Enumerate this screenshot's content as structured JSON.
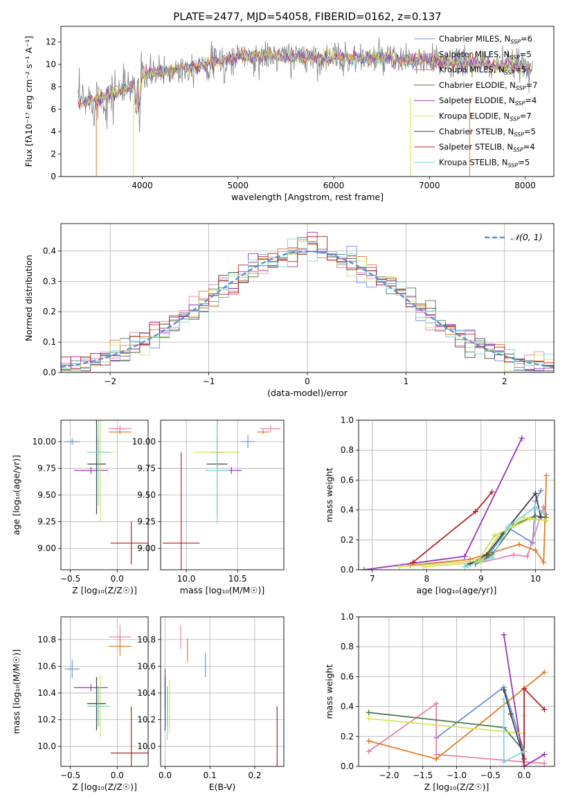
{
  "figure_title": "PLATE=2477, MJD=54058, FIBERID=0162, z=0.137",
  "colors": {
    "Chabrier MILES": "#6a8fd4",
    "Salpeter MILES": "#7fd0d6",
    "Kroupa MILES": "#e07b27",
    "Chabrier ELODIE": "#4c7a4c",
    "Salpeter ELODIE": "#9b32b5",
    "Kroupa ELODIE": "#d6e35a",
    "Chabrier STELIB": "#404040",
    "Salpeter STELIB": "#b22222",
    "Kroupa STELIB": "#7fd7dc",
    "Pink": "#e87fae",
    "Yellow-green": "#c7e05a",
    "Gauss": "#5b8fd6",
    "Observed": "#808080"
  },
  "chart_data": [
    {
      "id": "spectrum",
      "type": "line",
      "xlabel": "wavelength [Angstrom, rest frame]",
      "ylabel": "Flux [fλ10⁻¹⁷ erg cm⁻² s⁻¹ A⁻¹]",
      "xlim": [
        3150,
        8300
      ],
      "ylim": [
        0,
        13.4
      ],
      "xticks": [
        4000,
        5000,
        6000,
        7000,
        8000
      ],
      "yticks": [
        0,
        2,
        4,
        6,
        8,
        10,
        12
      ],
      "legend": [
        {
          "label": "Chabrier MILES, N",
          "sub": "SSP",
          "val": "=6",
          "color": "#6a8fd4"
        },
        {
          "label": "Salpeter MILES, N",
          "sub": "SSP",
          "val": "=5",
          "color": "#e87fae"
        },
        {
          "label": "Kroupa MILES, N",
          "sub": "SSP",
          "val": "=5",
          "color": "#e07b27"
        },
        {
          "label": "Chabrier ELODIE, N",
          "sub": "SSP",
          "val": "=7",
          "color": "#4c7a4c"
        },
        {
          "label": "Salpeter ELODIE, N",
          "sub": "SSP",
          "val": "=4",
          "color": "#9b32b5"
        },
        {
          "label": "Kroupa ELODIE, N",
          "sub": "SSP",
          "val": "=7",
          "color": "#d6e35a"
        },
        {
          "label": "Chabrier STELIB, N",
          "sub": "SSP",
          "val": "=5",
          "color": "#404040"
        },
        {
          "label": "Salpeter STELIB, N",
          "sub": "SSP",
          "val": "=4",
          "color": "#b22222"
        },
        {
          "label": "Kroupa STELIB, N",
          "sub": "SSP",
          "val": "=5",
          "color": "#7fd7dc"
        }
      ]
    },
    {
      "id": "residuals",
      "type": "line",
      "xlabel": "(data-model)/error",
      "ylabel": "Normed distribution",
      "xlim": [
        -2.5,
        2.5
      ],
      "ylim": [
        0,
        0.49
      ],
      "xticks": [
        -2,
        -1,
        0,
        1,
        2
      ],
      "yticks": [
        0.0,
        0.1,
        0.2,
        0.3,
        0.4
      ],
      "legend": "𝒩(0, 1)"
    },
    {
      "id": "age_vs_Z",
      "type": "scatter",
      "xlabel": "Z [log₁₀(Z/Z☉)]",
      "ylabel": "age  [log₁₀(age/yr)]",
      "xlim": [
        -0.6,
        0.33
      ],
      "ylim": [
        8.8,
        10.2
      ],
      "xticks": [
        -0.5,
        0.0
      ],
      "yticks": [
        9.0,
        9.25,
        9.5,
        9.75,
        10.0
      ],
      "points": [
        {
          "x": -0.48,
          "y": 10.0,
          "xerr": 0.08,
          "yerr": 0.03,
          "color": "#6a8fd4"
        },
        {
          "x": 0.03,
          "y": 10.12,
          "xerr": 0.12,
          "yerr": 0.0,
          "color": "#e87fae"
        },
        {
          "x": 0.03,
          "y": 10.09,
          "xerr": 0.12,
          "yerr": 0.02,
          "color": "#e07b27"
        },
        {
          "x": -0.2,
          "y": 9.9,
          "xerr": 0.1,
          "yerr": 0.15,
          "color": "#4c7a4c"
        },
        {
          "x": -0.28,
          "y": 9.73,
          "xerr": 0.18,
          "yerr": 0.0,
          "color": "#9b32b5"
        },
        {
          "x": -0.18,
          "y": 9.9,
          "xerr": 0.15,
          "yerr": 0.65,
          "color": "#d6e35a"
        },
        {
          "x": -0.22,
          "y": 9.79,
          "xerr": 0.1,
          "yerr": 0.47,
          "color": "#404040"
        },
        {
          "x": 0.15,
          "y": 9.05,
          "xerr": 0.22,
          "yerr": 0.2,
          "color": "#b22222"
        },
        {
          "x": -0.2,
          "y": 9.9,
          "xerr": 0.12,
          "yerr": 0.5,
          "color": "#7fd7dc"
        }
      ]
    },
    {
      "id": "age_vs_mass",
      "type": "scatter",
      "xlabel": "mass [log₁₀(M/M☉)]",
      "ylabel": "",
      "xlim": [
        9.75,
        10.95
      ],
      "ylim": [
        8.8,
        10.2
      ],
      "xticks": [
        10.0,
        10.5
      ],
      "yticks": [
        9.0,
        9.25,
        9.5,
        9.75,
        10.0
      ],
      "points": [
        {
          "x": 10.6,
          "y": 10.0,
          "xerr": 0.07,
          "yerr": 0.06,
          "color": "#6a8fd4"
        },
        {
          "x": 10.82,
          "y": 10.12,
          "xerr": 0.1,
          "yerr": 0.0,
          "color": "#e87fae"
        },
        {
          "x": 10.75,
          "y": 10.09,
          "xerr": 0.06,
          "yerr": 0.02,
          "color": "#e07b27"
        },
        {
          "x": 10.3,
          "y": 9.9,
          "xerr": 0.07,
          "yerr": 0.15,
          "color": "#4c7a4c"
        },
        {
          "x": 10.44,
          "y": 9.73,
          "xerr": 0.1,
          "yerr": 0.0,
          "color": "#9b32b5"
        },
        {
          "x": 10.3,
          "y": 9.9,
          "xerr": 0.22,
          "yerr": 0.65,
          "color": "#d6e35a"
        },
        {
          "x": 10.3,
          "y": 9.79,
          "xerr": 0.1,
          "yerr": 0.47,
          "color": "#404040"
        },
        {
          "x": 9.95,
          "y": 9.05,
          "xerr": 0.18,
          "yerr": 0.85,
          "color": "#b22222"
        },
        {
          "x": 10.3,
          "y": 9.73,
          "xerr": 0.12,
          "yerr": 0.5,
          "color": "#7fd7dc"
        }
      ]
    },
    {
      "id": "mass_weight_vs_age",
      "type": "line",
      "xlabel": "age  [log₁₀(age/yr)]",
      "ylabel": "mass weight",
      "xlim": [
        6.75,
        10.35
      ],
      "ylim": [
        0.0,
        1.0
      ],
      "xticks": [
        7,
        8,
        9,
        10
      ],
      "yticks": [
        0.0,
        0.2,
        0.4,
        0.6,
        0.8,
        1.0
      ],
      "series": [
        {
          "color": "#6a8fd4",
          "x": [
            8.75,
            9.1,
            9.5,
            9.95,
            10.0,
            10.1
          ],
          "y": [
            0.03,
            0.08,
            0.28,
            0.18,
            0.46,
            0.53
          ]
        },
        {
          "color": "#e87fae",
          "x": [
            8.9,
            9.6,
            9.85,
            10.15,
            10.2
          ],
          "y": [
            0.04,
            0.1,
            0.09,
            0.42,
            0.37
          ]
        },
        {
          "color": "#e07b27",
          "x": [
            7.7,
            8.8,
            9.7,
            10.0,
            10.15,
            10.2
          ],
          "y": [
            0.03,
            0.07,
            0.17,
            0.13,
            0.05,
            0.63
          ]
        },
        {
          "color": "#4c7a4c",
          "x": [
            8.9,
            9.2,
            9.6,
            10.0,
            10.2
          ],
          "y": [
            0.04,
            0.1,
            0.3,
            0.36,
            0.35
          ]
        },
        {
          "color": "#9b32b5",
          "x": [
            6.85,
            8.7,
            9.75
          ],
          "y": [
            0.0,
            0.09,
            0.88
          ]
        },
        {
          "color": "#d6e35a",
          "x": [
            7.95,
            9.0,
            9.3,
            9.8,
            10.2
          ],
          "y": [
            0.02,
            0.05,
            0.22,
            0.35,
            0.33
          ]
        },
        {
          "color": "#404040",
          "x": [
            8.8,
            9.1,
            9.4,
            10.0,
            10.1
          ],
          "y": [
            0.04,
            0.1,
            0.24,
            0.51,
            0.35
          ]
        },
        {
          "color": "#b22222",
          "x": [
            7.75,
            8.9,
            9.2
          ],
          "y": [
            0.05,
            0.39,
            0.52
          ]
        },
        {
          "color": "#c7e05a",
          "x": [
            7.5,
            8.95,
            9.25,
            9.9,
            10.2
          ],
          "y": [
            0.02,
            0.06,
            0.23,
            0.34,
            0.33
          ]
        },
        {
          "color": "#7fd7dc",
          "x": [
            8.7,
            9.2,
            9.5,
            10.0,
            10.15
          ],
          "y": [
            0.02,
            0.08,
            0.29,
            0.42,
            0.38
          ]
        }
      ]
    },
    {
      "id": "mass_vs_Z",
      "type": "scatter",
      "xlabel": "Z [log₁₀(Z/Z☉)]",
      "ylabel": "mass [log₁₀(M/M☉)]",
      "xlim": [
        -0.6,
        0.33
      ],
      "ylim": [
        9.85,
        10.97
      ],
      "xticks": [
        -0.5,
        0.0
      ],
      "yticks": [
        10.0,
        10.2,
        10.4,
        10.6,
        10.8
      ],
      "points": [
        {
          "x": -0.48,
          "y": 10.58,
          "xerr": 0.08,
          "yerr": 0.07,
          "color": "#6a8fd4"
        },
        {
          "x": 0.03,
          "y": 10.82,
          "xerr": 0.12,
          "yerr": 0.09,
          "color": "#e87fae"
        },
        {
          "x": 0.03,
          "y": 10.75,
          "xerr": 0.12,
          "yerr": 0.07,
          "color": "#e07b27"
        },
        {
          "x": -0.2,
          "y": 10.3,
          "xerr": 0.1,
          "yerr": 0.15,
          "color": "#4c7a4c"
        },
        {
          "x": -0.28,
          "y": 10.44,
          "xerr": 0.18,
          "yerr": 0.0,
          "color": "#9b32b5"
        },
        {
          "x": -0.18,
          "y": 10.3,
          "xerr": 0.1,
          "yerr": 0.23,
          "color": "#d6e35a"
        },
        {
          "x": -0.22,
          "y": 10.32,
          "xerr": 0.1,
          "yerr": 0.2,
          "color": "#404040"
        },
        {
          "x": 0.15,
          "y": 9.95,
          "xerr": 0.22,
          "yerr": 0.35,
          "color": "#b22222"
        },
        {
          "x": -0.2,
          "y": 10.3,
          "xerr": 0.12,
          "yerr": 0.15,
          "color": "#7fd7dc"
        }
      ]
    },
    {
      "id": "mass_vs_EBV",
      "type": "scatter",
      "xlabel": "E(B-V)",
      "ylabel": "",
      "xlim": [
        -0.01,
        0.265
      ],
      "ylim": [
        9.85,
        10.97
      ],
      "xticks": [
        0.0,
        0.1,
        0.2
      ],
      "yticks": [
        10.0,
        10.2,
        10.4,
        10.6,
        10.8
      ],
      "points": [
        {
          "x": 0.09,
          "y": 10.61,
          "xerr": 0.0,
          "yerr": 0.09,
          "color": "#6a8fd4"
        },
        {
          "x": 0.035,
          "y": 10.82,
          "xerr": 0.0,
          "yerr": 0.09,
          "color": "#e87fae"
        },
        {
          "x": 0.05,
          "y": 10.72,
          "xerr": 0.0,
          "yerr": 0.09,
          "color": "#e07b27"
        },
        {
          "x": 0.005,
          "y": 10.3,
          "xerr": 0.0,
          "yerr": 0.15,
          "color": "#4c7a4c"
        },
        {
          "x": 0.0,
          "y": 10.44,
          "xerr": 0.0,
          "yerr": 0.14,
          "color": "#9b32b5"
        },
        {
          "x": 0.01,
          "y": 10.3,
          "xerr": 0.0,
          "yerr": 0.2,
          "color": "#d6e35a"
        },
        {
          "x": 0.0,
          "y": 10.32,
          "xerr": 0.0,
          "yerr": 0.2,
          "color": "#404040"
        },
        {
          "x": 0.25,
          "y": 10.0,
          "xerr": 0.0,
          "yerr": 0.3,
          "color": "#b22222"
        },
        {
          "x": 0.005,
          "y": 10.25,
          "xerr": 0.0,
          "yerr": 0.2,
          "color": "#7fd7dc"
        }
      ]
    },
    {
      "id": "mass_weight_vs_Z",
      "type": "line",
      "xlabel": "Z [log₁₀(Z/Z☉)]",
      "ylabel": "mass weight",
      "xlim": [
        -2.45,
        0.45
      ],
      "ylim": [
        0.0,
        1.0
      ],
      "xticks": [
        -2.0,
        -1.5,
        -1.0,
        -0.5,
        0.0
      ],
      "yticks": [
        0.0,
        0.2,
        0.4,
        0.6,
        0.8,
        1.0
      ],
      "series": [
        {
          "color": "#6a8fd4",
          "x": [
            -1.3,
            -0.3,
            0.0
          ],
          "y": [
            0.19,
            0.53,
            0.1
          ]
        },
        {
          "color": "#e87fae",
          "x": [
            -2.3,
            -1.3,
            -1.3,
            0.0,
            0.3
          ],
          "y": [
            0.1,
            0.42,
            0.08,
            0.03,
            0.02
          ]
        },
        {
          "color": "#e07b27",
          "x": [
            -2.3,
            -1.3,
            0.3
          ],
          "y": [
            0.17,
            0.05,
            0.63
          ]
        },
        {
          "color": "#4c7a4c",
          "x": [
            -2.3,
            -0.3,
            0.0
          ],
          "y": [
            0.36,
            0.26,
            0.1
          ]
        },
        {
          "color": "#9b32b5",
          "x": [
            -0.3,
            0.0,
            0.3
          ],
          "y": [
            0.88,
            0.0,
            0.08
          ]
        },
        {
          "color": "#d6e35a",
          "x": [
            -2.3,
            0.0,
            0.0
          ],
          "y": [
            0.32,
            0.22,
            0.34
          ]
        },
        {
          "color": "#404040",
          "x": [
            -0.3,
            -0.2,
            0.0
          ],
          "y": [
            0.51,
            0.35,
            0.05
          ]
        },
        {
          "color": "#b22222",
          "x": [
            0.0,
            0.0,
            0.3
          ],
          "y": [
            0.0,
            0.52,
            0.38
          ]
        },
        {
          "color": "#7fd7dc",
          "x": [
            -0.3,
            -0.3,
            0.0
          ],
          "y": [
            0.45,
            0.03,
            0.1
          ]
        }
      ]
    }
  ]
}
